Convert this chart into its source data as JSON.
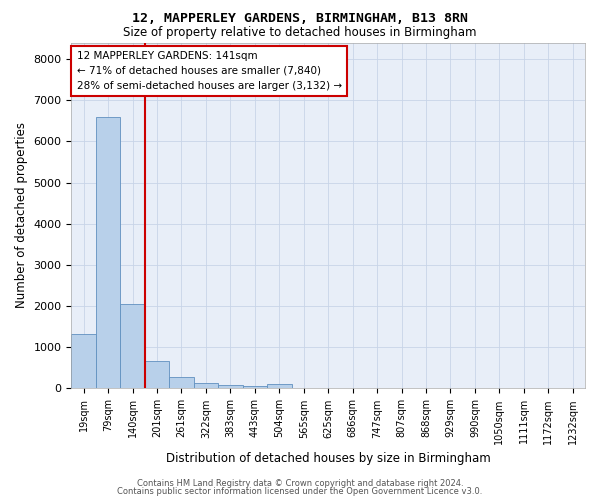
{
  "title_line1": "12, MAPPERLEY GARDENS, BIRMINGHAM, B13 8RN",
  "title_line2": "Size of property relative to detached houses in Birmingham",
  "xlabel": "Distribution of detached houses by size in Birmingham",
  "ylabel": "Number of detached properties",
  "annotation_line1": "12 MAPPERLEY GARDENS: 141sqm",
  "annotation_line2": "← 71% of detached houses are smaller (7,840)",
  "annotation_line3": "28% of semi-detached houses are larger (3,132) →",
  "bin_labels": [
    "19sqm",
    "79sqm",
    "140sqm",
    "201sqm",
    "261sqm",
    "322sqm",
    "383sqm",
    "443sqm",
    "504sqm",
    "565sqm",
    "625sqm",
    "686sqm",
    "747sqm",
    "807sqm",
    "868sqm",
    "929sqm",
    "990sqm",
    "1050sqm",
    "1111sqm",
    "1172sqm",
    "1232sqm"
  ],
  "bar_heights": [
    1310,
    6600,
    2060,
    660,
    280,
    140,
    90,
    70,
    110,
    0,
    0,
    0,
    0,
    0,
    0,
    0,
    0,
    0,
    0,
    0,
    0
  ],
  "bar_color": "#b8d0ea",
  "bar_edge_color": "#6090c0",
  "vline_bar_index": 2,
  "vline_color": "#cc0000",
  "ylim": [
    0,
    8400
  ],
  "yticks": [
    0,
    1000,
    2000,
    3000,
    4000,
    5000,
    6000,
    7000,
    8000
  ],
  "grid_color": "#c8d4e8",
  "background_color": "#e8eef8",
  "annotation_box_color": "#cc0000",
  "footer_line1": "Contains HM Land Registry data © Crown copyright and database right 2024.",
  "footer_line2": "Contains public sector information licensed under the Open Government Licence v3.0."
}
